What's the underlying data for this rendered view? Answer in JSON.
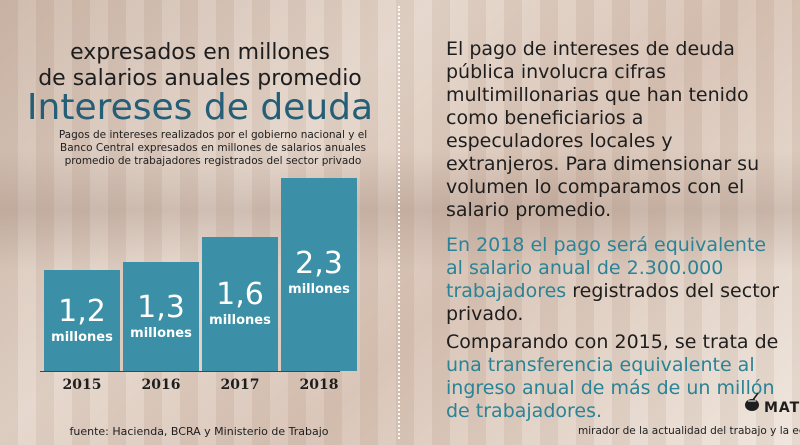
{
  "header": {
    "subtitle_line1": "expresados en millones",
    "subtitle_line2": "de salarios anuales promedio",
    "title": "Intereses de deuda",
    "description": "Pagos de intereses realizados por el gobierno nacional y el Banco Central expresados en millones de salarios anuales promedio de trabajadores registrados del sector privado"
  },
  "chart_data": {
    "type": "bar",
    "categories": [
      "2015",
      "2016",
      "2017",
      "2018"
    ],
    "values": [
      1.2,
      1.3,
      1.6,
      2.3
    ],
    "value_labels": [
      "1,2",
      "1,3",
      "1,6",
      "2,3"
    ],
    "unit_label": "millones",
    "title": "Intereses de deuda",
    "xlabel": "",
    "ylabel": "",
    "grid": false,
    "bar_color": "#3b8fa6"
  },
  "source": "fuente: Hacienda, BCRA y Ministerio de Trabajo",
  "right": {
    "para1": "El pago de intereses de deuda pública involucra cifras multimillonarias que han tenido como beneficiarios a especuladores locales y extranjeros. Para dimensionar su volumen lo comparamos con el salario promedio.",
    "para2_highlight": "En 2018 el pago será equivalente al salario anual de 2.300.000 trabajadores",
    "para2_rest": " registrados del sector privado.",
    "para3_start": "Comparando con 2015, se trata de ",
    "para3_highlight": "una transferencia equivalente al ingreso anual de más de un millón de trabajadores."
  },
  "brand": {
    "name": "MAT",
    "tagline": "mirador de la actualidad del trabajo y la econo"
  },
  "colors": {
    "accent": "#255f77",
    "bar": "#3b8fa6",
    "highlight_text": "#2a8396"
  }
}
